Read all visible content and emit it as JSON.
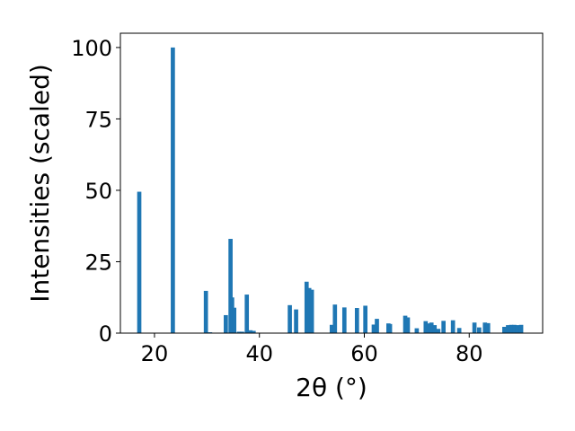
{
  "chart_data": {
    "type": "bar",
    "xlabel": "2θ (°)",
    "ylabel": "Intensities (scaled)",
    "xlim": [
      13.5,
      94
    ],
    "ylim": [
      0,
      105
    ],
    "xticks": [
      20,
      40,
      60,
      80
    ],
    "yticks": [
      0,
      25,
      50,
      75,
      100
    ],
    "bar_color": "#1f77b4",
    "grid": false,
    "bar_width": 0.8,
    "x": [
      17.1,
      23.5,
      29.8,
      30.6,
      33.6,
      34.5,
      34.8,
      35.2,
      36.1,
      36.7,
      37.6,
      38.3,
      38.9,
      45.8,
      47.0,
      49.0,
      49.5,
      50.0,
      53.8,
      54.4,
      56.2,
      58.6,
      60.2,
      61.8,
      62.4,
      64.6,
      64.9,
      67.8,
      68.3,
      70.0,
      71.7,
      72.3,
      72.8,
      73.4,
      74.1,
      75.1,
      76.9,
      78.1,
      81.0,
      81.9,
      83.0,
      83.6,
      86.7,
      87.4,
      88.0,
      88.6,
      89.2,
      89.9
    ],
    "values": [
      49.5,
      100,
      14.8,
      0.3,
      6.3,
      33.0,
      12.5,
      8.9,
      0.5,
      0.5,
      13.5,
      1.0,
      0.8,
      9.8,
      8.3,
      18.0,
      15.8,
      15.2,
      2.9,
      10.0,
      9.0,
      8.8,
      9.6,
      3.0,
      5.0,
      3.4,
      3.2,
      6.1,
      5.5,
      1.7,
      4.2,
      3.4,
      3.7,
      2.8,
      1.5,
      4.3,
      4.5,
      1.8,
      3.7,
      2.0,
      3.7,
      3.5,
      2.2,
      2.8,
      2.9,
      2.9,
      2.8,
      2.9
    ]
  }
}
